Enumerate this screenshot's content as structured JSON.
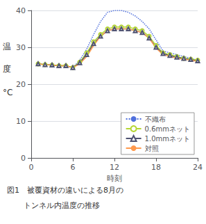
{
  "chart_data": {
    "type": "line",
    "xlabel": "時刻",
    "ylabel": [
      "温",
      "度",
      "°C"
    ],
    "annotations": [
      "図1　被覆資材の違いによる8月の",
      "トンネル内温度の推移"
    ],
    "x": [
      1,
      2,
      3,
      4,
      5,
      6,
      7,
      8,
      9,
      10,
      11,
      12,
      13,
      14,
      15,
      16,
      17,
      18,
      19,
      20,
      21,
      22,
      23,
      24
    ],
    "series": [
      {
        "name": "不織布",
        "line_style": "dotted",
        "marker": "none",
        "values": [
          25.5,
          25.3,
          25.2,
          25.0,
          25.0,
          24.5,
          26.5,
          29.5,
          33.5,
          37.0,
          39.5,
          40.0,
          40.0,
          39.5,
          38.5,
          37.0,
          35.0,
          32.0,
          29.0,
          28.5,
          28.0,
          27.5,
          27.0,
          26.5
        ]
      },
      {
        "name": "0.6mmネット",
        "line_style": "solid",
        "marker": "circle",
        "values": [
          25.5,
          25.3,
          25.2,
          25.0,
          25.0,
          24.5,
          26.0,
          28.5,
          31.5,
          33.5,
          35.0,
          35.5,
          35.5,
          35.5,
          35.0,
          34.5,
          33.0,
          30.5,
          28.5,
          28.0,
          27.5,
          27.0,
          26.8,
          26.5
        ]
      },
      {
        "name": "1.0mmネット",
        "line_style": "solid",
        "marker": "triangle",
        "values": [
          25.5,
          25.3,
          25.2,
          25.0,
          25.0,
          24.5,
          25.8,
          28.0,
          31.0,
          33.0,
          34.5,
          35.0,
          35.0,
          35.0,
          34.5,
          34.0,
          32.5,
          30.0,
          28.3,
          27.8,
          27.3,
          27.0,
          26.7,
          26.3
        ]
      },
      {
        "name": "対照",
        "line_style": "solid",
        "marker": "none",
        "values": [
          25.5,
          25.3,
          25.2,
          25.0,
          25.0,
          24.5,
          25.5,
          27.5,
          30.5,
          33.0,
          34.5,
          35.0,
          35.0,
          35.0,
          34.5,
          34.0,
          32.5,
          29.8,
          28.0,
          27.5,
          27.0,
          26.8,
          26.5,
          26.2
        ]
      }
    ],
    "xlim": [
      0,
      24
    ],
    "ylim": [
      0,
      40
    ],
    "xticks": [
      0,
      6,
      12,
      18,
      24
    ],
    "yticks": [
      0,
      10,
      20,
      30,
      40
    ],
    "grid": "y",
    "legend": "lower right"
  }
}
